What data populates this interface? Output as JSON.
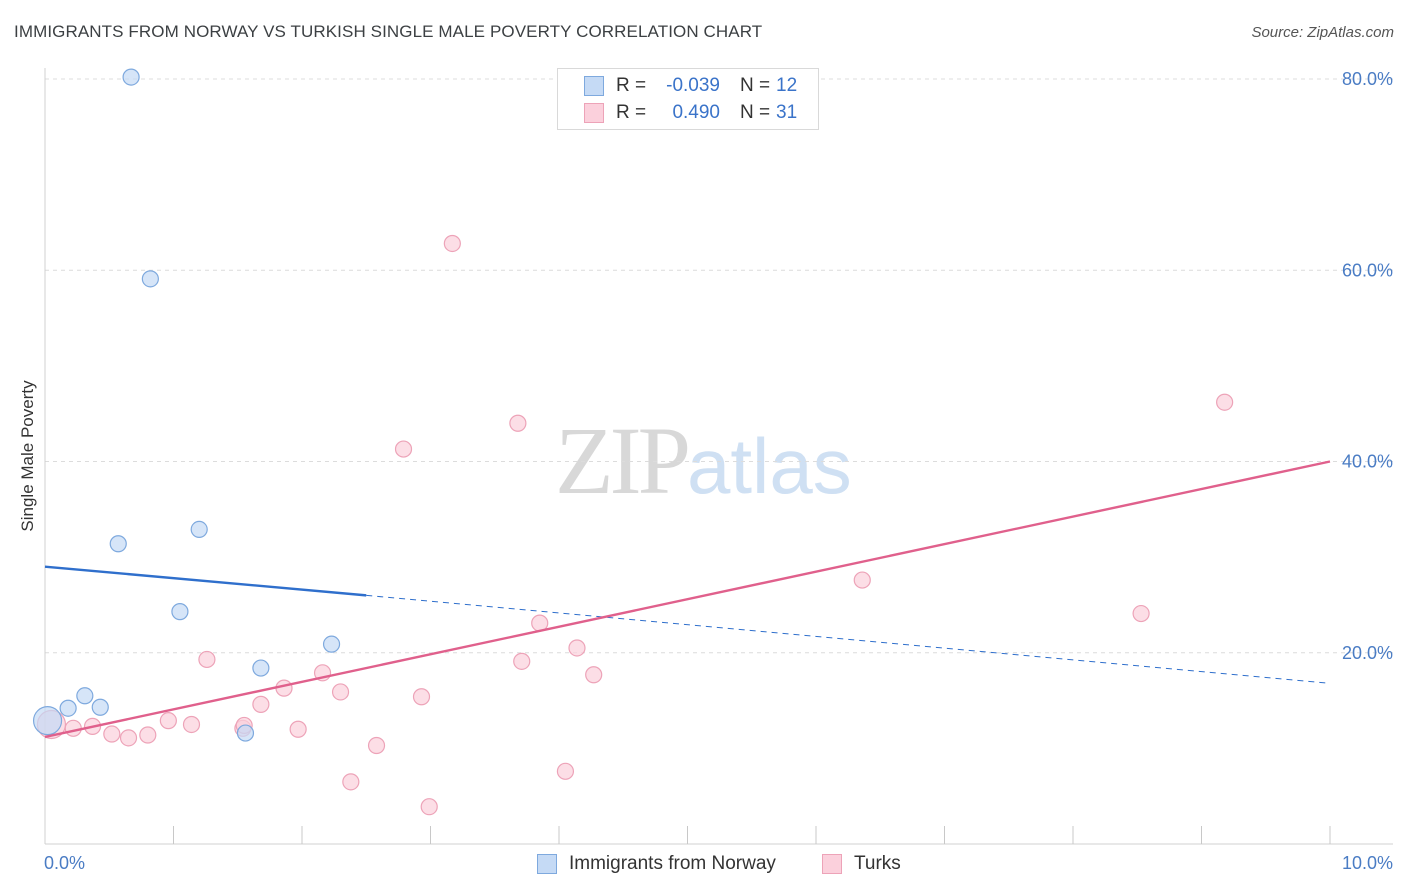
{
  "title": "IMMIGRANTS FROM NORWAY VS TURKISH SINGLE MALE POVERTY CORRELATION CHART",
  "source": "Source: ZipAtlas.com",
  "colors": {
    "norway_fill": "#c5daf5",
    "norway_stroke": "#7ea9de",
    "norway_line": "#2f6fcc",
    "turks_fill": "#fbd0dc",
    "turks_stroke": "#eda3b8",
    "turks_line": "#e0608c",
    "grid": "#dcdcdc",
    "tick_text": "#4a7cc4"
  },
  "legend": {
    "rows": [
      {
        "r_label": "R =",
        "r_value": "-0.039",
        "n_label": "N =",
        "n_value": "12"
      },
      {
        "r_label": "R =",
        "r_value": "0.490",
        "n_label": "N =",
        "n_value": "31"
      }
    ]
  },
  "watermark": {
    "part1": "ZIP",
    "part2": "atlas"
  },
  "chart_data": {
    "type": "scatter",
    "title": "IMMIGRANTS FROM NORWAY VS TURKISH SINGLE MALE POVERTY CORRELATION CHART",
    "xlabel": "",
    "ylabel": "Single Male Poverty",
    "xlim": [
      0,
      10
    ],
    "ylim": [
      0,
      80
    ],
    "x_tick_labels": [
      {
        "value": 0,
        "label": "0.0%"
      },
      {
        "value": 10,
        "label": "10.0%"
      }
    ],
    "y_tick_labels": [
      {
        "value": 20,
        "label": "20.0%"
      },
      {
        "value": 40,
        "label": "40.0%"
      },
      {
        "value": 60,
        "label": "60.0%"
      },
      {
        "value": 80,
        "label": "80.0%"
      }
    ],
    "x_minor_ticks": [
      1,
      2,
      3,
      4,
      5,
      6,
      7,
      8,
      9,
      10
    ],
    "series": [
      {
        "name": "Immigrants from Norway",
        "color": "norway",
        "points": [
          {
            "x": 0.67,
            "y": 80.2,
            "r": 8
          },
          {
            "x": 0.82,
            "y": 59.1,
            "r": 8
          },
          {
            "x": 0.57,
            "y": 31.4,
            "r": 8
          },
          {
            "x": 1.2,
            "y": 32.9,
            "r": 8
          },
          {
            "x": 1.05,
            "y": 24.3,
            "r": 8
          },
          {
            "x": 2.23,
            "y": 20.9,
            "r": 8
          },
          {
            "x": 1.68,
            "y": 18.4,
            "r": 8
          },
          {
            "x": 0.31,
            "y": 15.5,
            "r": 8
          },
          {
            "x": 0.18,
            "y": 14.2,
            "r": 8
          },
          {
            "x": 0.43,
            "y": 14.3,
            "r": 8
          },
          {
            "x": 1.56,
            "y": 11.6,
            "r": 8
          },
          {
            "x": 0.02,
            "y": 12.9,
            "r": 14
          }
        ],
        "trend": {
          "solid": [
            [
              0,
              29.0
            ],
            [
              2.5,
              26.0
            ]
          ],
          "dashed": [
            [
              2.5,
              26.0
            ],
            [
              10,
              16.8
            ]
          ]
        }
      },
      {
        "name": "Turks",
        "color": "turks",
        "points": [
          {
            "x": 3.17,
            "y": 62.8,
            "r": 8
          },
          {
            "x": 9.18,
            "y": 46.2,
            "r": 8
          },
          {
            "x": 3.68,
            "y": 44.0,
            "r": 8
          },
          {
            "x": 2.79,
            "y": 41.3,
            "r": 8
          },
          {
            "x": 6.36,
            "y": 27.6,
            "r": 8
          },
          {
            "x": 8.53,
            "y": 24.1,
            "r": 8
          },
          {
            "x": 3.85,
            "y": 23.1,
            "r": 8
          },
          {
            "x": 4.14,
            "y": 20.5,
            "r": 8
          },
          {
            "x": 3.71,
            "y": 19.1,
            "r": 8
          },
          {
            "x": 1.26,
            "y": 19.3,
            "r": 8
          },
          {
            "x": 2.16,
            "y": 17.9,
            "r": 8
          },
          {
            "x": 4.27,
            "y": 17.7,
            "r": 8
          },
          {
            "x": 1.86,
            "y": 16.3,
            "r": 8
          },
          {
            "x": 2.3,
            "y": 15.9,
            "r": 8
          },
          {
            "x": 2.93,
            "y": 15.4,
            "r": 8
          },
          {
            "x": 1.68,
            "y": 14.6,
            "r": 8
          },
          {
            "x": 0.96,
            "y": 12.9,
            "r": 8
          },
          {
            "x": 1.14,
            "y": 12.5,
            "r": 8
          },
          {
            "x": 1.54,
            "y": 12.1,
            "r": 8
          },
          {
            "x": 1.55,
            "y": 12.4,
            "r": 8
          },
          {
            "x": 1.97,
            "y": 12.0,
            "r": 8
          },
          {
            "x": 0.37,
            "y": 12.3,
            "r": 8
          },
          {
            "x": 0.22,
            "y": 12.1,
            "r": 8
          },
          {
            "x": 0.52,
            "y": 11.5,
            "r": 8
          },
          {
            "x": 0.65,
            "y": 11.1,
            "r": 8
          },
          {
            "x": 0.8,
            "y": 11.4,
            "r": 8
          },
          {
            "x": 2.58,
            "y": 10.3,
            "r": 8
          },
          {
            "x": 4.05,
            "y": 7.6,
            "r": 8
          },
          {
            "x": 2.38,
            "y": 6.5,
            "r": 8
          },
          {
            "x": 2.99,
            "y": 3.9,
            "r": 8
          },
          {
            "x": 0.05,
            "y": 12.5,
            "r": 14
          }
        ],
        "trend": {
          "solid": [
            [
              0,
              11.2
            ],
            [
              10,
              40.0
            ]
          ]
        }
      }
    ]
  },
  "bottom_legend": [
    {
      "label": "Immigrants from Norway",
      "color": "norway"
    },
    {
      "label": "Turks",
      "color": "turks"
    }
  ]
}
